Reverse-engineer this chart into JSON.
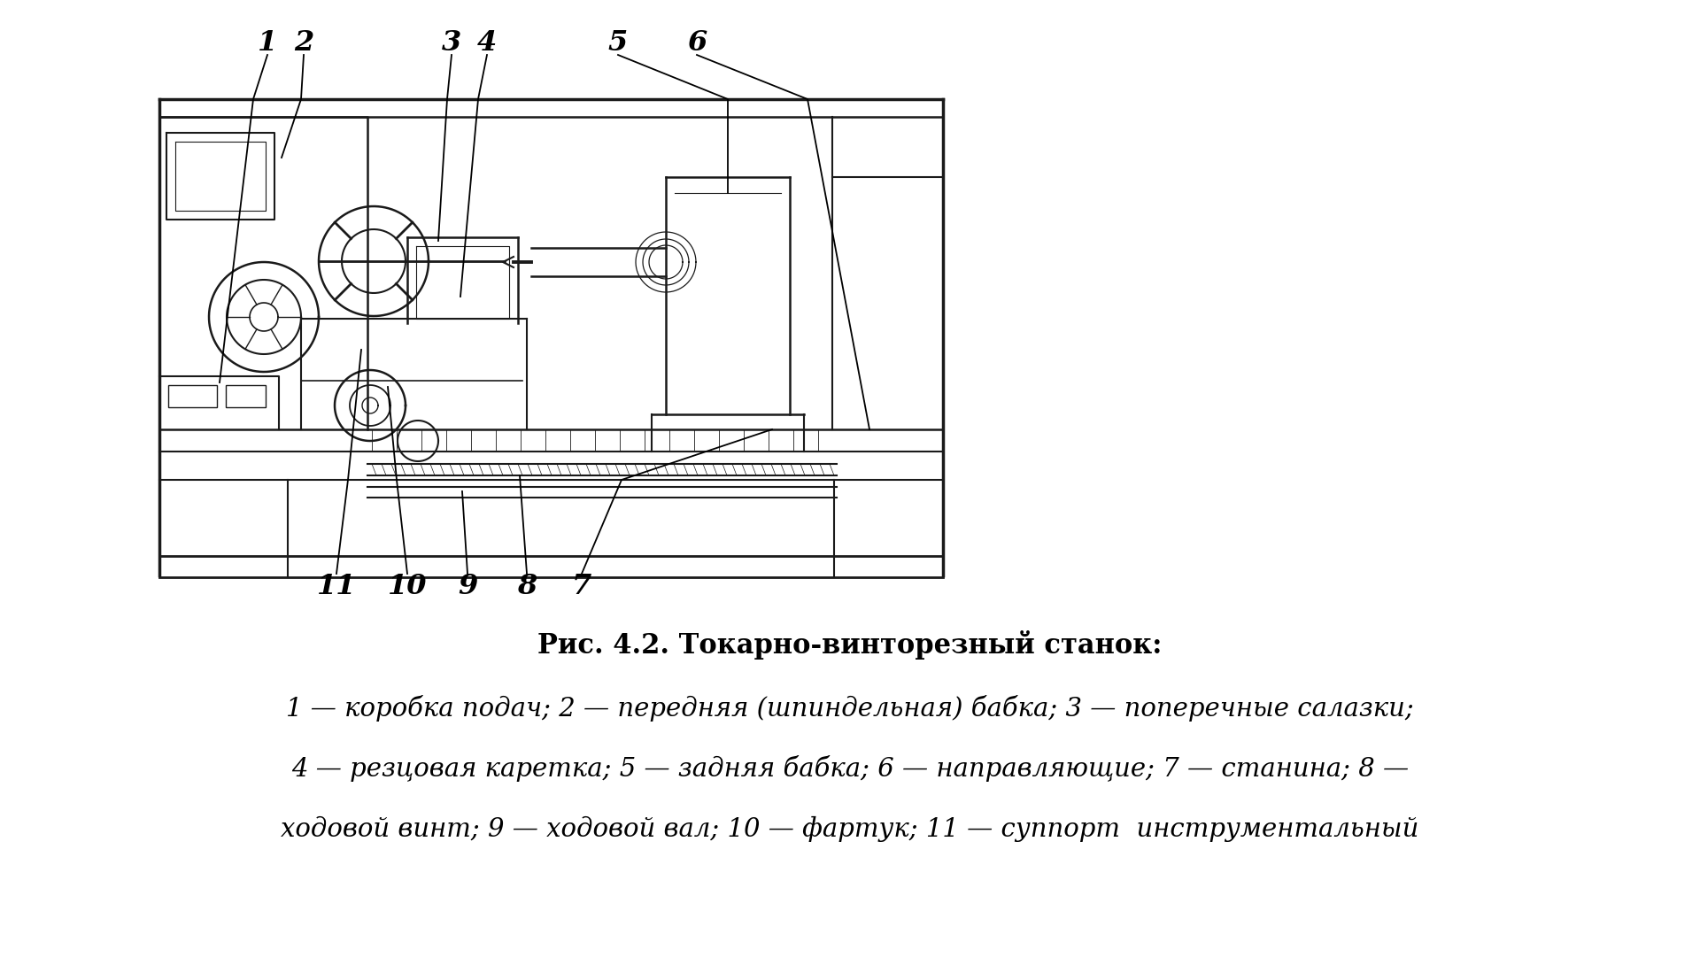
{
  "bg_color": "#ffffff",
  "line_color": "#1a1a1a",
  "fig_title": "Рис. 4.2. Токарно-винторезный станок:",
  "desc1": "1 — коробка подач; 2 — передняя (шпиндельная) бабка; 3 — поперечные салазки;",
  "desc2": "4 — резцовая каретка; 5 — задняя бабка; 6 — направляющие; 7 — станина; 8 —",
  "desc3": "ходовой винт; 9 — ходовой вал; 10 — фартук; 11 — суппорт  инструментальный",
  "title_fontsize": 22,
  "desc_fontsize": 21,
  "label_fontsize": 23
}
